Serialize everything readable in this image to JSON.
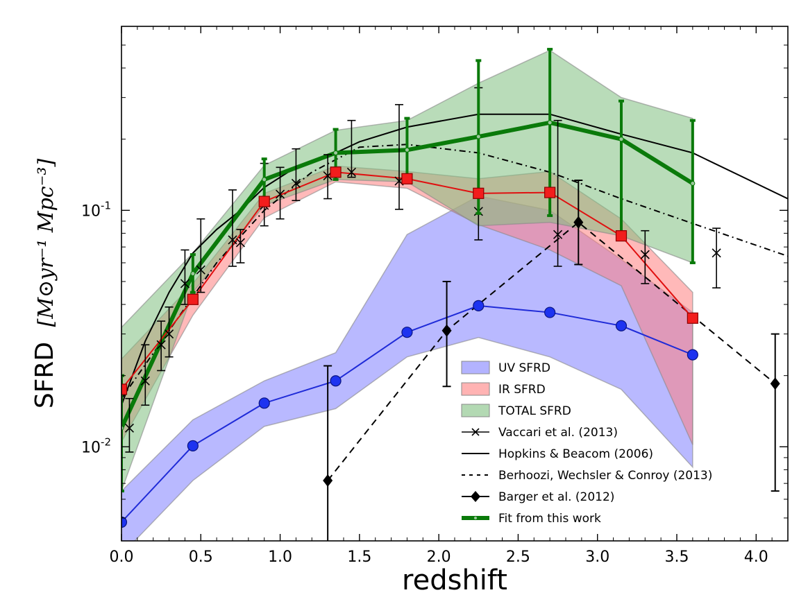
{
  "chart_data": {
    "type": "line",
    "xlabel": "redshift",
    "ylabel": "SFRD",
    "ylabel_units": "[M⊙yr⁻¹ Mpc⁻³]",
    "xlim": [
      0.0,
      4.2
    ],
    "ylim": [
      0.004,
      0.6
    ],
    "yscale": "log",
    "x_ticks": [
      0.0,
      0.5,
      1.0,
      1.5,
      2.0,
      2.5,
      3.0,
      3.5,
      4.0
    ],
    "x_tick_labels": [
      "0.0",
      "0.5",
      "1.0",
      "1.5",
      "2.0",
      "2.5",
      "3.0",
      "3.5",
      "4.0"
    ],
    "y_ticks": [
      {
        "value": 0.01,
        "base": "10",
        "exp": "-2"
      },
      {
        "value": 0.1,
        "base": "10",
        "exp": "-1"
      }
    ],
    "grid": false,
    "legend_position": "lower-right",
    "bands": [
      {
        "name": "UV SFRD",
        "color": "#8080ff",
        "x": [
          0.0,
          0.45,
          0.9,
          1.35,
          1.8,
          2.25,
          2.7,
          3.15,
          3.6
        ],
        "lower": [
          0.0035,
          0.0072,
          0.0122,
          0.0145,
          0.024,
          0.029,
          0.024,
          0.0175,
          0.0082
        ],
        "upper": [
          0.0065,
          0.013,
          0.019,
          0.025,
          0.079,
          0.115,
          0.1,
          0.062,
          0.037
        ]
      },
      {
        "name": "IR SFRD",
        "color": "#ff8080",
        "x": [
          0.0,
          0.45,
          0.9,
          1.35,
          1.8,
          2.25,
          2.7,
          3.15,
          3.6
        ],
        "lower": [
          0.0105,
          0.036,
          0.093,
          0.132,
          0.124,
          0.087,
          0.068,
          0.048,
          0.0102
        ],
        "upper": [
          0.0235,
          0.049,
          0.118,
          0.154,
          0.146,
          0.136,
          0.146,
          0.092,
          0.045
        ]
      },
      {
        "name": "TOTAL SFRD",
        "color": "#80c080",
        "x": [
          0.0,
          0.45,
          0.9,
          1.35,
          1.8,
          2.25,
          2.7,
          3.15,
          3.6
        ],
        "lower": [
          0.0065,
          0.045,
          0.105,
          0.135,
          0.132,
          0.086,
          0.089,
          0.078,
          0.06
        ],
        "upper": [
          0.032,
          0.066,
          0.155,
          0.218,
          0.24,
          0.345,
          0.475,
          0.3,
          0.245
        ]
      }
    ],
    "series": [
      {
        "name": "UV SFRD",
        "style": "line-circle",
        "color": "#1f2bd8",
        "x": [
          0.0,
          0.45,
          0.9,
          1.35,
          1.8,
          2.25,
          2.7,
          3.15,
          3.6
        ],
        "y": [
          0.0048,
          0.0101,
          0.0153,
          0.019,
          0.0305,
          0.0395,
          0.037,
          0.0325,
          0.0245
        ]
      },
      {
        "name": "IR SFRD",
        "style": "line-square",
        "color": "#e01010",
        "x": [
          0.0,
          0.45,
          0.9,
          1.35,
          1.8,
          2.25,
          2.7,
          3.15,
          3.6
        ],
        "y": [
          0.0175,
          0.042,
          0.109,
          0.145,
          0.136,
          0.118,
          0.119,
          0.078,
          0.035
        ]
      },
      {
        "name": "Hopkins & Beacom (2006)",
        "style": "solid",
        "color": "#000000",
        "x": [
          0.0,
          0.15,
          0.3,
          0.45,
          0.6,
          0.75,
          0.9,
          1.05,
          1.35,
          1.5,
          1.8,
          2.25,
          2.7,
          3.15,
          3.6,
          4.2
        ],
        "y": [
          0.015,
          0.028,
          0.045,
          0.066,
          0.083,
          0.1,
          0.125,
          0.145,
          0.175,
          0.195,
          0.225,
          0.255,
          0.255,
          0.21,
          0.175,
          0.112
        ]
      },
      {
        "name": "Berhoozi, Wechsler & Conroy (2013)",
        "style": "dashdot",
        "color": "#000000",
        "x": [
          0.0,
          0.3,
          0.6,
          0.9,
          1.2,
          1.5,
          1.8,
          2.25,
          2.7,
          3.15,
          3.6,
          4.2
        ],
        "y": [
          0.016,
          0.031,
          0.06,
          0.1,
          0.145,
          0.185,
          0.19,
          0.175,
          0.145,
          0.112,
          0.088,
          0.064
        ]
      },
      {
        "name": "Barger et al. (2012)",
        "style": "dash-diamond",
        "color": "#000000",
        "x": [
          1.3,
          2.05,
          2.88,
          4.12
        ],
        "y": [
          0.0072,
          0.031,
          0.089,
          0.0185
        ],
        "yerr_low": [
          0.003,
          0.018,
          0.059,
          0.0065
        ],
        "yerr_high": [
          0.022,
          0.05,
          0.134,
          0.03
        ]
      },
      {
        "name": "Vaccari et al. (2013)",
        "style": "markers-x",
        "color": "#000000",
        "x": [
          0.05,
          0.15,
          0.25,
          0.3,
          0.4,
          0.5,
          0.7,
          0.75,
          0.9,
          1.0,
          1.1,
          1.3,
          1.45,
          1.75,
          2.25,
          2.75,
          3.3,
          3.75
        ],
        "y": [
          0.012,
          0.019,
          0.027,
          0.03,
          0.049,
          0.056,
          0.075,
          0.073,
          0.105,
          0.117,
          0.13,
          0.14,
          0.145,
          0.133,
          0.099,
          0.079,
          0.065,
          0.066
        ],
        "yerr_low": [
          0.0095,
          0.015,
          0.021,
          0.024,
          0.04,
          0.045,
          0.058,
          0.06,
          0.086,
          0.092,
          0.11,
          0.112,
          0.138,
          0.101,
          0.075,
          0.058,
          0.049,
          0.047
        ],
        "yerr_high": [
          0.016,
          0.027,
          0.034,
          0.039,
          0.068,
          0.092,
          0.122,
          0.083,
          0.158,
          0.152,
          0.182,
          0.172,
          0.24,
          0.28,
          0.33,
          0.24,
          0.082,
          0.084
        ]
      },
      {
        "name": "Fit from this work",
        "style": "thick-line",
        "color": "#0a7a0a",
        "x": [
          0.0,
          0.45,
          0.9,
          1.35,
          1.8,
          2.25,
          2.7,
          3.15,
          3.6
        ],
        "y": [
          0.012,
          0.054,
          0.135,
          0.175,
          0.18,
          0.205,
          0.235,
          0.2,
          0.13
        ],
        "yerr_low": [
          0.0065,
          0.045,
          0.105,
          0.135,
          0.132,
          0.097,
          0.095,
          0.08,
          0.06
        ],
        "yerr_high": [
          0.02,
          0.065,
          0.165,
          0.22,
          0.245,
          0.43,
          0.48,
          0.29,
          0.24
        ]
      }
    ]
  },
  "legend": [
    {
      "label": "UV SFRD",
      "kind": "patch",
      "color": "#8080ff"
    },
    {
      "label": "IR SFRD",
      "kind": "patch",
      "color": "#ff8080"
    },
    {
      "label": "TOTAL SFRD",
      "kind": "patch",
      "color": "#80c080"
    },
    {
      "label": "Vaccari et al. (2013)",
      "kind": "line-x",
      "color": "#000000"
    },
    {
      "label": "Hopkins & Beacom (2006)",
      "kind": "line",
      "color": "#000000"
    },
    {
      "label": "Berhoozi, Wechsler & Conroy (2013)",
      "kind": "dash",
      "color": "#000000"
    },
    {
      "label": "Barger et al. (2012)",
      "kind": "line-diamond",
      "color": "#000000"
    },
    {
      "label": "Fit from this work",
      "kind": "thick",
      "color": "#0a7a0a"
    }
  ]
}
